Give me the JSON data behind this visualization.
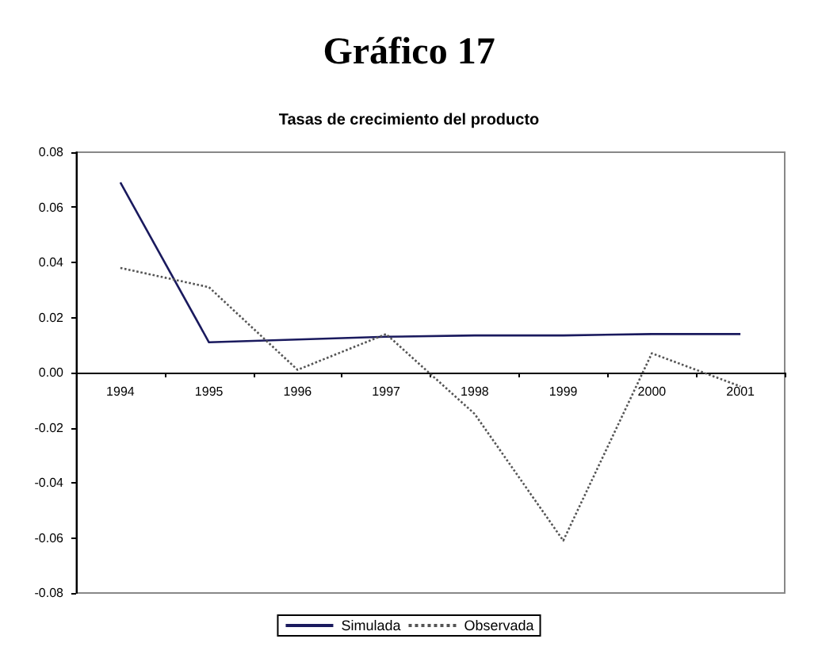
{
  "chart_data": {
    "type": "line",
    "title": "Gráfico 17",
    "subtitle": "Tasas de crecimiento del producto",
    "categories": [
      "1994",
      "1995",
      "1996",
      "1997",
      "1998",
      "1999",
      "2000",
      "2001"
    ],
    "series": [
      {
        "name": "Simulada",
        "color": "#1a1a5e",
        "line_style": "solid",
        "values": [
          0.069,
          0.011,
          0.012,
          0.013,
          0.0135,
          0.0135,
          0.014,
          0.014
        ]
      },
      {
        "name": "Observada",
        "color": "#555555",
        "line_style": "dotted",
        "values": [
          0.038,
          0.031,
          0.001,
          0.014,
          -0.015,
          -0.061,
          0.007,
          -0.005
        ]
      }
    ],
    "ylim": [
      -0.08,
      0.08
    ],
    "yticks": [
      -0.08,
      -0.06,
      -0.04,
      -0.02,
      {
        "value": 0,
        "label": "0.00"
      },
      0.02,
      0.04,
      0.06,
      0.08
    ],
    "grid": false,
    "legend": "bottom",
    "marker": "none"
  }
}
